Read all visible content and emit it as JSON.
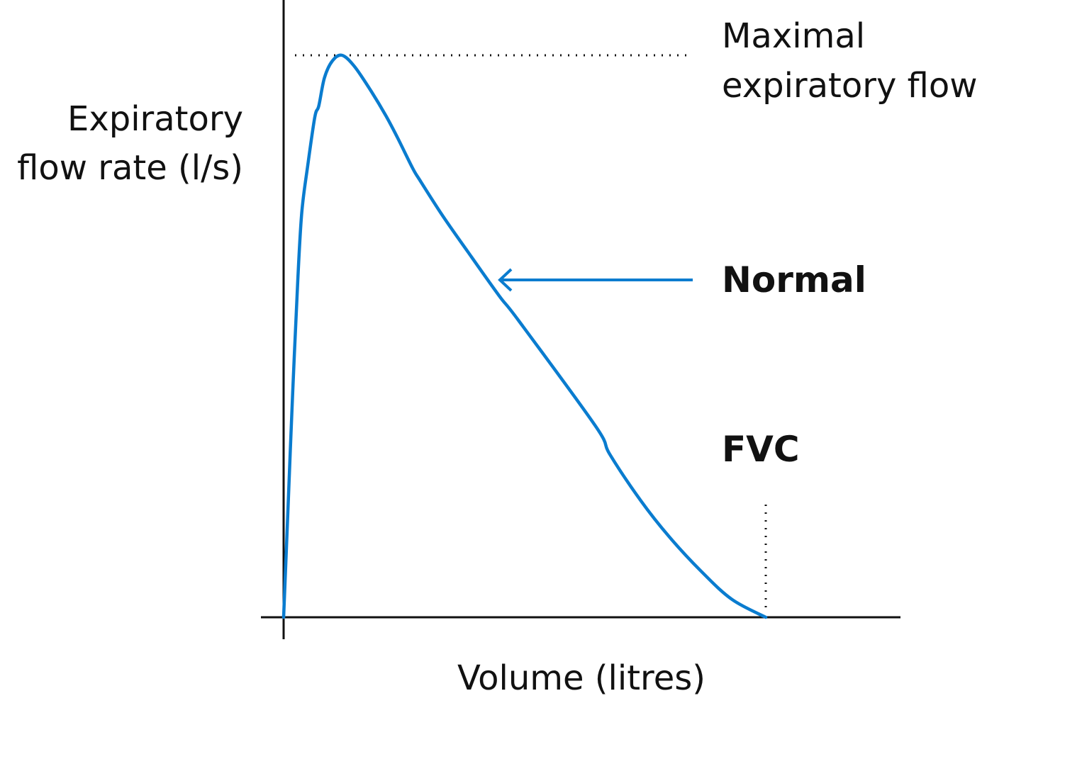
{
  "chart_data": {
    "type": "line",
    "title": "",
    "ylabel_lines": [
      "Expiratory",
      "flow rate (l/s)"
    ],
    "xlabel": "Volume (litres)",
    "grid": false,
    "legend": "none",
    "xlim": [
      0,
      100
    ],
    "ylim": [
      0,
      100
    ],
    "series": [
      {
        "name": "Normal",
        "color": "#0a7ccf",
        "points": [
          [
            0,
            0
          ],
          [
            0.8,
            20
          ],
          [
            1.6,
            40
          ],
          [
            2.5,
            60
          ],
          [
            3.2,
            72
          ],
          [
            4.2,
            80
          ],
          [
            5.5,
            89
          ],
          [
            6.2,
            91
          ],
          [
            7.2,
            96
          ],
          [
            8.6,
            99
          ],
          [
            10.3,
            100
          ],
          [
            12.5,
            98
          ],
          [
            15.5,
            93.5
          ],
          [
            18,
            89.3
          ],
          [
            20,
            85.5
          ],
          [
            22.7,
            80
          ],
          [
            24,
            77.8
          ],
          [
            28,
            71.5
          ],
          [
            32.5,
            65
          ],
          [
            38,
            57.2
          ],
          [
            41.5,
            52.7
          ],
          [
            55,
            34
          ],
          [
            57.5,
            29
          ],
          [
            63,
            20.7
          ],
          [
            68,
            14.3
          ],
          [
            73.5,
            8.3
          ],
          [
            79,
            3.2
          ],
          [
            85,
            0
          ]
        ]
      }
    ],
    "reference_lines": [
      {
        "kind": "horizontal-dotted",
        "at": "Maximal expiratory flow"
      },
      {
        "kind": "vertical-dotted",
        "at": "FVC"
      }
    ],
    "annotations": {
      "max_flow": [
        "Maximal",
        "expiratory flow"
      ],
      "normal": "Normal",
      "fvc": "FVC"
    }
  },
  "colors": {
    "curve": "#0a7ccf",
    "axis": "#111111",
    "text": "#111111"
  }
}
